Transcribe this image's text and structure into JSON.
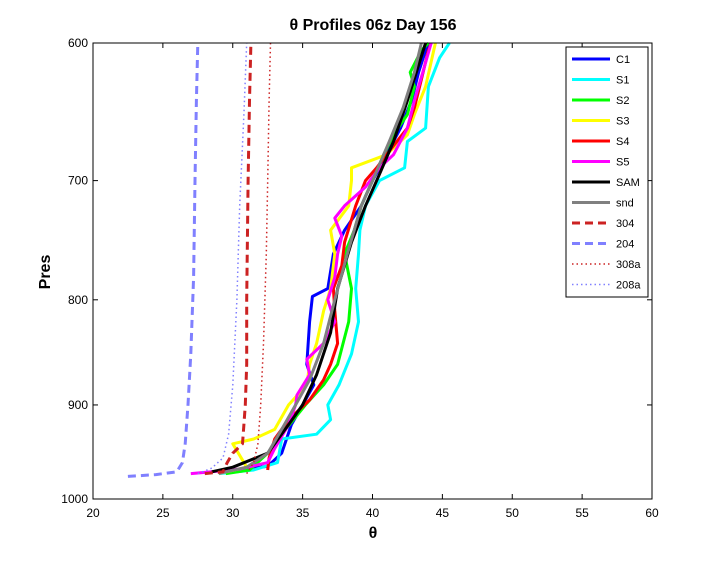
{
  "chart_data": {
    "type": "line",
    "title": "θ Profiles 06z Day 156",
    "xlabel": "θ",
    "ylabel": "Pres",
    "xlim": [
      20,
      60
    ],
    "ylim": [
      1000,
      600
    ],
    "y_scale": "log",
    "y_reversed": true,
    "grid": false,
    "legend_position": "top-right",
    "x_ticks": [
      "20",
      "25",
      "30",
      "35",
      "40",
      "45",
      "50",
      "55",
      "60"
    ],
    "y_ticks": [
      "600",
      "700",
      "800",
      "900",
      "1000"
    ],
    "series": [
      {
        "name": "C1",
        "color": "#0000ff",
        "style": "solid",
        "width": 3,
        "points": [
          [
            29.0,
            970
          ],
          [
            31.0,
            967
          ],
          [
            32.5,
            964
          ],
          [
            33.5,
            950
          ],
          [
            34.2,
            920
          ],
          [
            35.0,
            900
          ],
          [
            35.8,
            880
          ],
          [
            35.3,
            860
          ],
          [
            35.5,
            820
          ],
          [
            35.7,
            797
          ],
          [
            36.8,
            790
          ],
          [
            37.2,
            760
          ],
          [
            38.0,
            740
          ],
          [
            39.2,
            720
          ],
          [
            40.0,
            700
          ],
          [
            41.0,
            680
          ],
          [
            42.0,
            660
          ],
          [
            42.8,
            640
          ],
          [
            43.3,
            620
          ],
          [
            43.8,
            605
          ],
          [
            44.0,
            600
          ]
        ]
      },
      {
        "name": "S1",
        "color": "#00ffff",
        "style": "solid",
        "width": 3,
        "points": [
          [
            29.0,
            972
          ],
          [
            31.5,
            968
          ],
          [
            33.2,
            960
          ],
          [
            33.5,
            935
          ],
          [
            36.0,
            930
          ],
          [
            37.0,
            915
          ],
          [
            36.8,
            900
          ],
          [
            37.6,
            880
          ],
          [
            38.5,
            850
          ],
          [
            39.0,
            820
          ],
          [
            38.8,
            790
          ],
          [
            39.0,
            760
          ],
          [
            39.1,
            740
          ],
          [
            39.5,
            720
          ],
          [
            40.5,
            700
          ],
          [
            42.3,
            690
          ],
          [
            42.5,
            670
          ],
          [
            43.8,
            660
          ],
          [
            44.0,
            630
          ],
          [
            44.8,
            610
          ],
          [
            45.5,
            600
          ]
        ]
      },
      {
        "name": "S2",
        "color": "#00ff00",
        "style": "solid",
        "width": 3,
        "points": [
          [
            29.5,
            972
          ],
          [
            31.2,
            968
          ],
          [
            32.5,
            950
          ],
          [
            33.5,
            930
          ],
          [
            35.2,
            900
          ],
          [
            36.5,
            880
          ],
          [
            37.5,
            860
          ],
          [
            38.3,
            820
          ],
          [
            38.5,
            790
          ],
          [
            38.0,
            760
          ],
          [
            38.7,
            740
          ],
          [
            39.2,
            720
          ],
          [
            40.0,
            700
          ],
          [
            40.8,
            680
          ],
          [
            41.5,
            665
          ],
          [
            42.5,
            650
          ],
          [
            43.0,
            630
          ],
          [
            42.7,
            620
          ],
          [
            43.5,
            605
          ],
          [
            44.0,
            600
          ]
        ]
      },
      {
        "name": "S3",
        "color": "#ffff00",
        "style": "solid",
        "width": 3,
        "points": [
          [
            29.0,
            972
          ],
          [
            31.0,
            965
          ],
          [
            30.0,
            940
          ],
          [
            31.5,
            935
          ],
          [
            33.0,
            925
          ],
          [
            34.0,
            900
          ],
          [
            35.3,
            880
          ],
          [
            35.5,
            860
          ],
          [
            36.0,
            840
          ],
          [
            36.5,
            810
          ],
          [
            37.0,
            790
          ],
          [
            37.3,
            760
          ],
          [
            37.0,
            740
          ],
          [
            38.3,
            720
          ],
          [
            38.5,
            700
          ],
          [
            38.5,
            690
          ],
          [
            41.0,
            680
          ],
          [
            42.5,
            665
          ],
          [
            43.0,
            650
          ],
          [
            43.8,
            630
          ],
          [
            44.5,
            600
          ]
        ]
      },
      {
        "name": "S4",
        "color": "#ff0000",
        "style": "solid",
        "width": 3,
        "points": [
          [
            32.5,
            968
          ],
          [
            32.6,
            955
          ],
          [
            33.0,
            935
          ],
          [
            34.0,
            915
          ],
          [
            35.5,
            895
          ],
          [
            36.5,
            875
          ],
          [
            37.0,
            860
          ],
          [
            37.5,
            840
          ],
          [
            37.3,
            810
          ],
          [
            37.2,
            790
          ],
          [
            37.8,
            770
          ],
          [
            38.0,
            750
          ],
          [
            38.8,
            720
          ],
          [
            39.5,
            700
          ],
          [
            40.3,
            690
          ],
          [
            41.0,
            680
          ],
          [
            42.5,
            660
          ],
          [
            43.0,
            645
          ],
          [
            43.5,
            625
          ],
          [
            44.0,
            605
          ],
          [
            44.2,
            600
          ]
        ]
      },
      {
        "name": "S5",
        "color": "#ff00ff",
        "style": "solid",
        "width": 3,
        "points": [
          [
            27.0,
            972
          ],
          [
            28.5,
            970
          ],
          [
            30.5,
            967
          ],
          [
            32.5,
            960
          ],
          [
            33.0,
            945
          ],
          [
            34.0,
            920
          ],
          [
            34.5,
            900
          ],
          [
            34.6,
            890
          ],
          [
            35.5,
            870
          ],
          [
            35.3,
            855
          ],
          [
            36.5,
            840
          ],
          [
            37.3,
            820
          ],
          [
            36.8,
            800
          ],
          [
            37.3,
            780
          ],
          [
            37.5,
            760
          ],
          [
            37.8,
            745
          ],
          [
            37.3,
            730
          ],
          [
            38.0,
            720
          ],
          [
            39.5,
            705
          ],
          [
            40.5,
            690
          ],
          [
            41.5,
            680
          ],
          [
            42.5,
            660
          ],
          [
            43.0,
            640
          ],
          [
            43.6,
            620
          ],
          [
            44.2,
            600
          ]
        ]
      },
      {
        "name": "SAM",
        "color": "#000000",
        "style": "solid",
        "width": 3,
        "points": [
          [
            28.5,
            970
          ],
          [
            30.0,
            965
          ],
          [
            32.5,
            950
          ],
          [
            34.0,
            920
          ],
          [
            35.0,
            900
          ],
          [
            36.0,
            870
          ],
          [
            37.0,
            830
          ],
          [
            37.5,
            790
          ],
          [
            38.5,
            750
          ],
          [
            39.5,
            720
          ],
          [
            40.5,
            695
          ],
          [
            41.5,
            670
          ],
          [
            42.5,
            640
          ],
          [
            43.3,
            615
          ],
          [
            43.8,
            600
          ]
        ]
      },
      {
        "name": "snd",
        "color": "#808080",
        "style": "solid",
        "width": 3,
        "points": [
          [
            29.0,
            972
          ],
          [
            31.0,
            965
          ],
          [
            32.5,
            950
          ],
          [
            33.5,
            925
          ],
          [
            34.5,
            900
          ],
          [
            35.5,
            875
          ],
          [
            36.5,
            840
          ],
          [
            37.3,
            800
          ],
          [
            38.2,
            760
          ],
          [
            39.2,
            720
          ],
          [
            40.0,
            700
          ],
          [
            41.2,
            670
          ],
          [
            42.2,
            645
          ],
          [
            43.0,
            620
          ],
          [
            43.5,
            600
          ]
        ]
      },
      {
        "name": "304",
        "color": "#cc2222",
        "style": "dashed",
        "width": 3,
        "points": [
          [
            28.0,
            972
          ],
          [
            29.3,
            970
          ],
          [
            29.6,
            960
          ],
          [
            30.0,
            950
          ],
          [
            30.7,
            940
          ],
          [
            30.8,
            920
          ],
          [
            30.9,
            900
          ],
          [
            31.0,
            860
          ],
          [
            31.0,
            800
          ],
          [
            31.1,
            700
          ],
          [
            31.2,
            640
          ],
          [
            31.3,
            600
          ]
        ]
      },
      {
        "name": "204",
        "color": "#8080ff",
        "style": "dashed",
        "width": 3,
        "points": [
          [
            22.5,
            975
          ],
          [
            24.5,
            973
          ],
          [
            26.0,
            970
          ],
          [
            26.4,
            960
          ],
          [
            26.6,
            940
          ],
          [
            26.8,
            900
          ],
          [
            27.0,
            850
          ],
          [
            27.2,
            780
          ],
          [
            27.3,
            700
          ],
          [
            27.4,
            640
          ],
          [
            27.5,
            600
          ]
        ]
      },
      {
        "name": "308a",
        "color": "#cc2222",
        "style": "dotted",
        "width": 1.5,
        "points": [
          [
            31.0,
            972
          ],
          [
            31.5,
            960
          ],
          [
            31.8,
            940
          ],
          [
            32.0,
            900
          ],
          [
            32.2,
            840
          ],
          [
            32.4,
            760
          ],
          [
            32.5,
            700
          ],
          [
            32.6,
            640
          ],
          [
            32.7,
            600
          ]
        ]
      },
      {
        "name": "208a",
        "color": "#8080ff",
        "style": "dotted",
        "width": 1.5,
        "points": [
          [
            27.5,
            972
          ],
          [
            28.5,
            966
          ],
          [
            29.3,
            955
          ],
          [
            29.7,
            930
          ],
          [
            30.0,
            880
          ],
          [
            30.3,
            800
          ],
          [
            30.5,
            720
          ],
          [
            30.8,
            650
          ],
          [
            31.0,
            600
          ]
        ]
      }
    ]
  }
}
